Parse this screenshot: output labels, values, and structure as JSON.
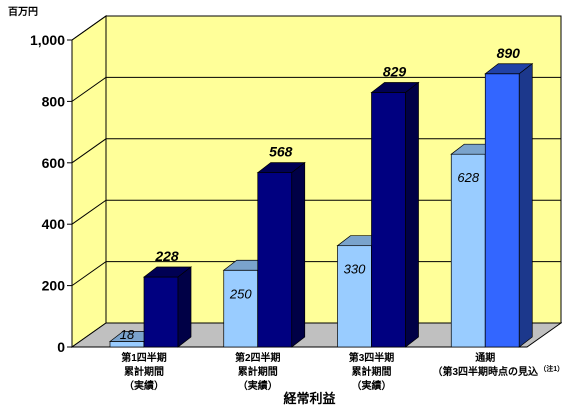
{
  "chart_data": {
    "type": "bar",
    "title": "",
    "unit_label": "百万円",
    "xlabel": "経常利益",
    "ylabel": "",
    "ylim": [
      0,
      1000
    ],
    "yticks": [
      "0",
      "200",
      "400",
      "600",
      "800",
      "1,000"
    ],
    "grid": true,
    "three_d": true,
    "categories": [
      [
        "第1四半期",
        "累計期間",
        "（実績）"
      ],
      [
        "第2四半期",
        "累計期間",
        "（実績）"
      ],
      [
        "第3四半期",
        "累計期間",
        "（実績）"
      ],
      [
        "通期",
        "（第3四半期時点の見込"
      ]
    ],
    "category_note": "（注1）",
    "series": [
      {
        "values": [
          18,
          250,
          330,
          628
        ],
        "labels": [
          "18",
          "250",
          "330",
          "628"
        ],
        "color": "#99ccff"
      },
      {
        "values": [
          228,
          568,
          829,
          890
        ],
        "labels": [
          "228",
          "568",
          "829",
          "890"
        ],
        "colors": [
          "#000080",
          "#000080",
          "#000080",
          "#3366ff"
        ]
      }
    ]
  },
  "colors": {
    "wall": "#ffff99",
    "floor": "#c0c0c0",
    "grid": "#000000"
  }
}
